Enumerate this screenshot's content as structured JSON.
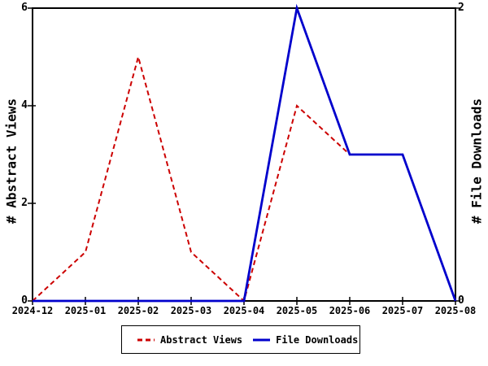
{
  "chart_data": {
    "type": "line",
    "title": "",
    "categories": [
      "2024-12",
      "2025-01",
      "2025-02",
      "2025-03",
      "2025-04",
      "2025-05",
      "2025-06",
      "2025-07",
      "2025-08"
    ],
    "series": [
      {
        "name": "Abstract Views",
        "axis": "left",
        "color": "#CC0000",
        "line_style": "dashed",
        "values": [
          0,
          1,
          5,
          1,
          0,
          4,
          3,
          3,
          0
        ]
      },
      {
        "name": "File Downloads",
        "axis": "right",
        "color": "#0000CC",
        "line_style": "solid",
        "values": [
          0,
          0,
          0,
          0,
          0,
          2,
          1,
          1,
          0
        ]
      }
    ],
    "left_axis": {
      "label": "# Abstract Views",
      "min": 0,
      "max": 6,
      "ticks": [
        0,
        2,
        4,
        6
      ]
    },
    "right_axis": {
      "label": "# File Downloads",
      "min": 0,
      "max": 2,
      "ticks": [
        0,
        2
      ]
    },
    "legend_position": "bottom",
    "grid": false,
    "frame_color": "#000000",
    "background_color": "#FFFFFF"
  }
}
